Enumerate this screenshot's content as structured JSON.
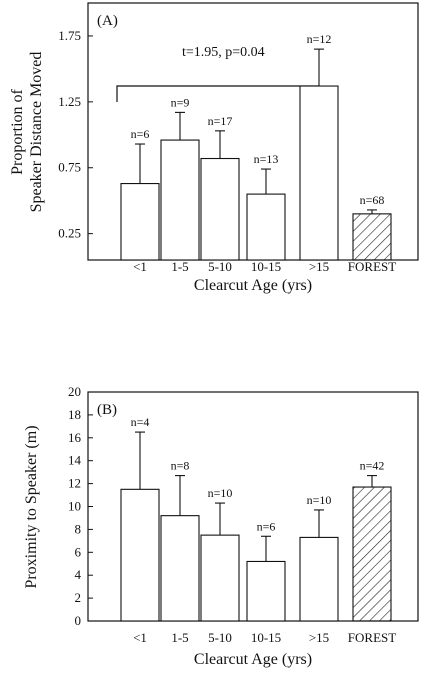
{
  "chart_data": [
    {
      "type": "bar",
      "panel_label": "(A)",
      "annotation": "t=1.95, p=0.04",
      "xlabel": "Clearcut Age (yrs)",
      "ylabel_line1": "Proportion of",
      "ylabel_line2": "Speaker Distance Moved",
      "categories": [
        "<1",
        "1-5",
        "5-10",
        "10-15",
        ">15",
        "FOREST"
      ],
      "values": [
        0.63,
        0.96,
        0.82,
        0.55,
        1.37,
        0.4
      ],
      "errors": [
        0.3,
        0.21,
        0.21,
        0.19,
        0.28,
        0.03
      ],
      "n_labels": [
        "n=6",
        "n=9",
        "n=17",
        "n=13",
        "n=12",
        "n=68"
      ],
      "hatched": [
        false,
        false,
        false,
        false,
        false,
        true
      ],
      "ylim": [
        0.05,
        2.0
      ],
      "yticks": [
        "0.25",
        "0.75",
        "1.25",
        "1.75"
      ]
    },
    {
      "type": "bar",
      "panel_label": "(B)",
      "xlabel": "Clearcut Age (yrs)",
      "ylabel": "Proximity to Speaker (m)",
      "categories": [
        "<1",
        "1-5",
        "5-10",
        "10-15",
        ">15",
        "FOREST"
      ],
      "values": [
        11.5,
        9.2,
        7.5,
        5.2,
        7.3,
        11.7
      ],
      "errors": [
        5.0,
        3.5,
        2.8,
        2.2,
        2.4,
        1.0
      ],
      "n_labels": [
        "n=4",
        "n=8",
        "n=10",
        "n=6",
        "n=10",
        "n=42"
      ],
      "hatched": [
        false,
        false,
        false,
        false,
        false,
        true
      ],
      "ylim": [
        0,
        20
      ],
      "yticks": [
        "0",
        "2",
        "4",
        "6",
        "8",
        "10",
        "12",
        "14",
        "16",
        "18",
        "20"
      ]
    }
  ]
}
